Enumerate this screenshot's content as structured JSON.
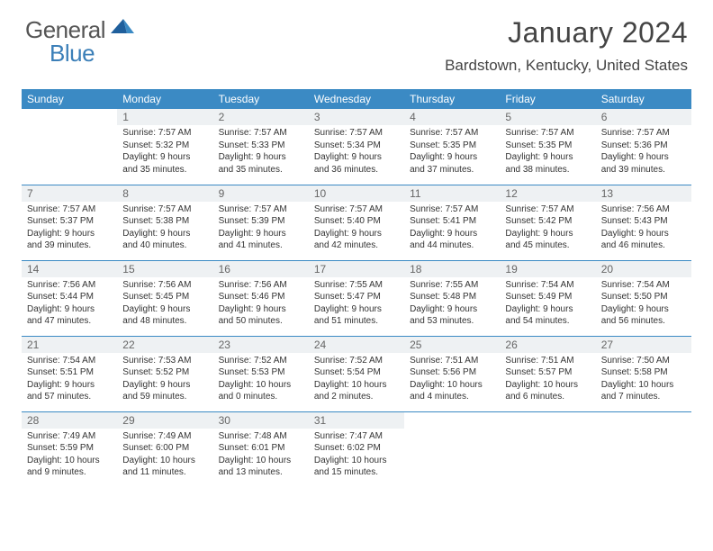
{
  "logo": {
    "textGeneral": "General",
    "textBlue": "Blue"
  },
  "header": {
    "title": "January 2024",
    "location": "Bardstown, Kentucky, United States"
  },
  "colors": {
    "headerBg": "#3b8ac4",
    "headerText": "#ffffff",
    "border": "#3b8ac4",
    "dayBg": "#eef1f3",
    "bodyText": "#333333",
    "logoBlue": "#3b7fb8"
  },
  "weekdays": [
    "Sunday",
    "Monday",
    "Tuesday",
    "Wednesday",
    "Thursday",
    "Friday",
    "Saturday"
  ],
  "weeks": [
    [
      {
        "empty": true
      },
      {
        "day": "1",
        "sunrise": "Sunrise: 7:57 AM",
        "sunset": "Sunset: 5:32 PM",
        "dl1": "Daylight: 9 hours",
        "dl2": "and 35 minutes."
      },
      {
        "day": "2",
        "sunrise": "Sunrise: 7:57 AM",
        "sunset": "Sunset: 5:33 PM",
        "dl1": "Daylight: 9 hours",
        "dl2": "and 35 minutes."
      },
      {
        "day": "3",
        "sunrise": "Sunrise: 7:57 AM",
        "sunset": "Sunset: 5:34 PM",
        "dl1": "Daylight: 9 hours",
        "dl2": "and 36 minutes."
      },
      {
        "day": "4",
        "sunrise": "Sunrise: 7:57 AM",
        "sunset": "Sunset: 5:35 PM",
        "dl1": "Daylight: 9 hours",
        "dl2": "and 37 minutes."
      },
      {
        "day": "5",
        "sunrise": "Sunrise: 7:57 AM",
        "sunset": "Sunset: 5:35 PM",
        "dl1": "Daylight: 9 hours",
        "dl2": "and 38 minutes."
      },
      {
        "day": "6",
        "sunrise": "Sunrise: 7:57 AM",
        "sunset": "Sunset: 5:36 PM",
        "dl1": "Daylight: 9 hours",
        "dl2": "and 39 minutes."
      }
    ],
    [
      {
        "day": "7",
        "sunrise": "Sunrise: 7:57 AM",
        "sunset": "Sunset: 5:37 PM",
        "dl1": "Daylight: 9 hours",
        "dl2": "and 39 minutes."
      },
      {
        "day": "8",
        "sunrise": "Sunrise: 7:57 AM",
        "sunset": "Sunset: 5:38 PM",
        "dl1": "Daylight: 9 hours",
        "dl2": "and 40 minutes."
      },
      {
        "day": "9",
        "sunrise": "Sunrise: 7:57 AM",
        "sunset": "Sunset: 5:39 PM",
        "dl1": "Daylight: 9 hours",
        "dl2": "and 41 minutes."
      },
      {
        "day": "10",
        "sunrise": "Sunrise: 7:57 AM",
        "sunset": "Sunset: 5:40 PM",
        "dl1": "Daylight: 9 hours",
        "dl2": "and 42 minutes."
      },
      {
        "day": "11",
        "sunrise": "Sunrise: 7:57 AM",
        "sunset": "Sunset: 5:41 PM",
        "dl1": "Daylight: 9 hours",
        "dl2": "and 44 minutes."
      },
      {
        "day": "12",
        "sunrise": "Sunrise: 7:57 AM",
        "sunset": "Sunset: 5:42 PM",
        "dl1": "Daylight: 9 hours",
        "dl2": "and 45 minutes."
      },
      {
        "day": "13",
        "sunrise": "Sunrise: 7:56 AM",
        "sunset": "Sunset: 5:43 PM",
        "dl1": "Daylight: 9 hours",
        "dl2": "and 46 minutes."
      }
    ],
    [
      {
        "day": "14",
        "sunrise": "Sunrise: 7:56 AM",
        "sunset": "Sunset: 5:44 PM",
        "dl1": "Daylight: 9 hours",
        "dl2": "and 47 minutes."
      },
      {
        "day": "15",
        "sunrise": "Sunrise: 7:56 AM",
        "sunset": "Sunset: 5:45 PM",
        "dl1": "Daylight: 9 hours",
        "dl2": "and 48 minutes."
      },
      {
        "day": "16",
        "sunrise": "Sunrise: 7:56 AM",
        "sunset": "Sunset: 5:46 PM",
        "dl1": "Daylight: 9 hours",
        "dl2": "and 50 minutes."
      },
      {
        "day": "17",
        "sunrise": "Sunrise: 7:55 AM",
        "sunset": "Sunset: 5:47 PM",
        "dl1": "Daylight: 9 hours",
        "dl2": "and 51 minutes."
      },
      {
        "day": "18",
        "sunrise": "Sunrise: 7:55 AM",
        "sunset": "Sunset: 5:48 PM",
        "dl1": "Daylight: 9 hours",
        "dl2": "and 53 minutes."
      },
      {
        "day": "19",
        "sunrise": "Sunrise: 7:54 AM",
        "sunset": "Sunset: 5:49 PM",
        "dl1": "Daylight: 9 hours",
        "dl2": "and 54 minutes."
      },
      {
        "day": "20",
        "sunrise": "Sunrise: 7:54 AM",
        "sunset": "Sunset: 5:50 PM",
        "dl1": "Daylight: 9 hours",
        "dl2": "and 56 minutes."
      }
    ],
    [
      {
        "day": "21",
        "sunrise": "Sunrise: 7:54 AM",
        "sunset": "Sunset: 5:51 PM",
        "dl1": "Daylight: 9 hours",
        "dl2": "and 57 minutes."
      },
      {
        "day": "22",
        "sunrise": "Sunrise: 7:53 AM",
        "sunset": "Sunset: 5:52 PM",
        "dl1": "Daylight: 9 hours",
        "dl2": "and 59 minutes."
      },
      {
        "day": "23",
        "sunrise": "Sunrise: 7:52 AM",
        "sunset": "Sunset: 5:53 PM",
        "dl1": "Daylight: 10 hours",
        "dl2": "and 0 minutes."
      },
      {
        "day": "24",
        "sunrise": "Sunrise: 7:52 AM",
        "sunset": "Sunset: 5:54 PM",
        "dl1": "Daylight: 10 hours",
        "dl2": "and 2 minutes."
      },
      {
        "day": "25",
        "sunrise": "Sunrise: 7:51 AM",
        "sunset": "Sunset: 5:56 PM",
        "dl1": "Daylight: 10 hours",
        "dl2": "and 4 minutes."
      },
      {
        "day": "26",
        "sunrise": "Sunrise: 7:51 AM",
        "sunset": "Sunset: 5:57 PM",
        "dl1": "Daylight: 10 hours",
        "dl2": "and 6 minutes."
      },
      {
        "day": "27",
        "sunrise": "Sunrise: 7:50 AM",
        "sunset": "Sunset: 5:58 PM",
        "dl1": "Daylight: 10 hours",
        "dl2": "and 7 minutes."
      }
    ],
    [
      {
        "day": "28",
        "sunrise": "Sunrise: 7:49 AM",
        "sunset": "Sunset: 5:59 PM",
        "dl1": "Daylight: 10 hours",
        "dl2": "and 9 minutes."
      },
      {
        "day": "29",
        "sunrise": "Sunrise: 7:49 AM",
        "sunset": "Sunset: 6:00 PM",
        "dl1": "Daylight: 10 hours",
        "dl2": "and 11 minutes."
      },
      {
        "day": "30",
        "sunrise": "Sunrise: 7:48 AM",
        "sunset": "Sunset: 6:01 PM",
        "dl1": "Daylight: 10 hours",
        "dl2": "and 13 minutes."
      },
      {
        "day": "31",
        "sunrise": "Sunrise: 7:47 AM",
        "sunset": "Sunset: 6:02 PM",
        "dl1": "Daylight: 10 hours",
        "dl2": "and 15 minutes."
      },
      {
        "empty": true
      },
      {
        "empty": true
      },
      {
        "empty": true
      }
    ]
  ]
}
